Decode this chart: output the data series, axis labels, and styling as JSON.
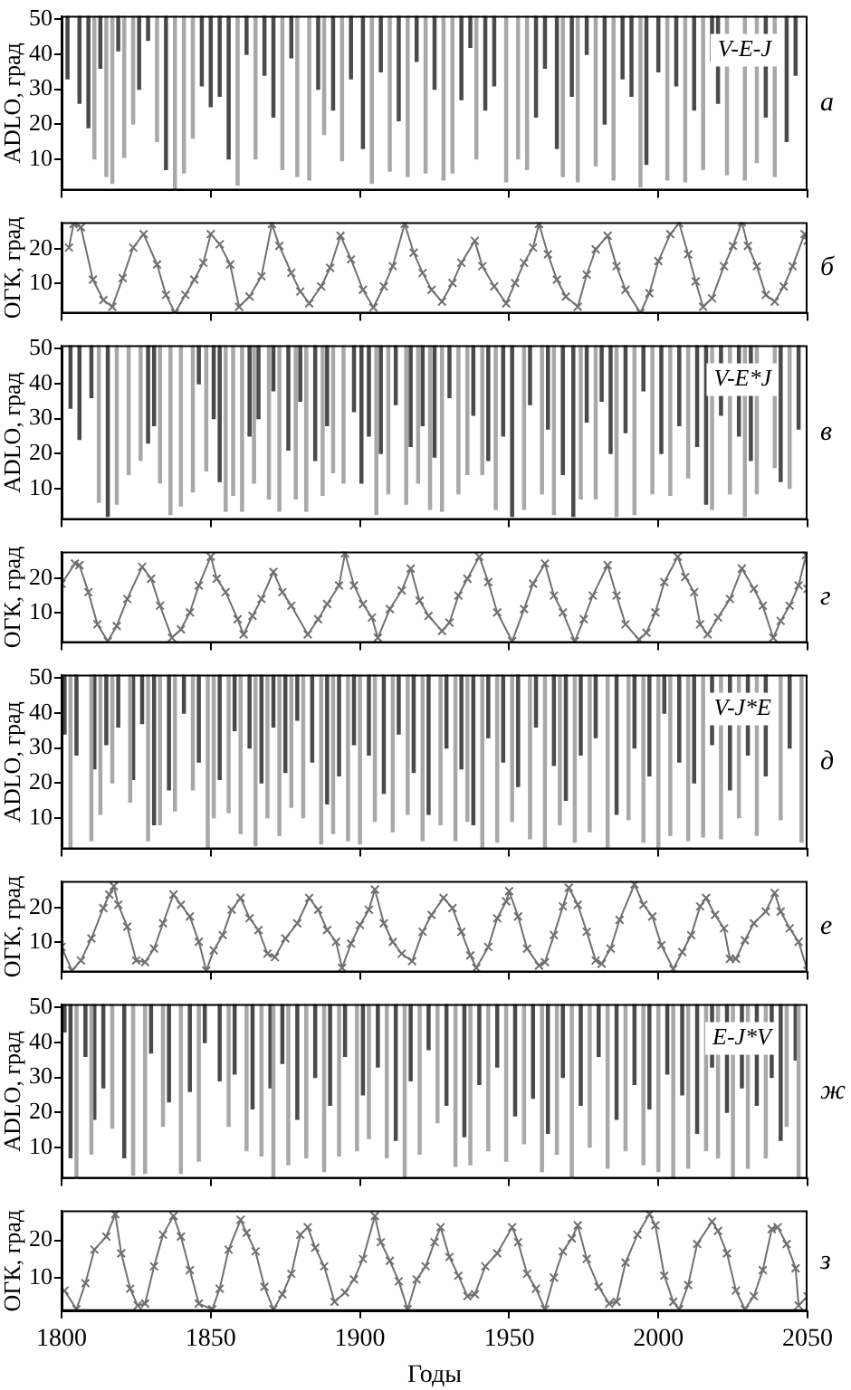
{
  "chart_data": [
    {
      "type": "bar",
      "title": "а",
      "ylabel": "ADLO, град",
      "annotations": [
        "V-E-J"
      ],
      "ylim": [
        1,
        51
      ],
      "yticks": [
        10,
        20,
        30,
        40,
        50
      ],
      "xlim": [
        1800,
        2050
      ],
      "xticks": [
        1800,
        1850,
        1900,
        1950,
        2000,
        2050
      ],
      "tick_labels": "y",
      "series": [
        {
          "color": "#a8a8a8",
          "x": [
            1811,
            1815,
            1817,
            1821,
            1824,
            1832,
            1838,
            1841,
            1844,
            1859,
            1865,
            1874,
            1879,
            1883,
            1888,
            1894,
            1904,
            1910,
            1916,
            1922,
            1928,
            1931,
            1939,
            1949,
            1953,
            1956,
            1968,
            1973,
            1979,
            1985,
            1994,
            2003,
            2009,
            2015,
            2023,
            2029,
            2033,
            2039
          ],
          "base": [
            10,
            5,
            3,
            10.5,
            20,
            15,
            1,
            6,
            16,
            2.5,
            10,
            7,
            5,
            4,
            17,
            9.5,
            3,
            6.5,
            5,
            6,
            4,
            6,
            10,
            3.5,
            10,
            7,
            5,
            3.5,
            8,
            4,
            2,
            4,
            3.5,
            7,
            5.5,
            4,
            9,
            5
          ],
          "values": [
            41,
            46,
            48,
            40.5,
            31,
            36,
            50,
            45,
            35,
            48.5,
            41,
            44,
            46,
            47,
            34,
            41.5,
            48,
            44.5,
            46,
            45,
            47,
            45,
            41,
            47.5,
            41,
            44,
            46,
            47.5,
            43,
            47,
            49,
            47,
            47.5,
            44,
            45.5,
            47,
            42,
            46
          ]
        },
        {
          "color": "#4a4a4a",
          "x": [
            1802,
            1806,
            1809,
            1813,
            1819,
            1826,
            1829,
            1835,
            1847,
            1850,
            1853,
            1856,
            1862,
            1868,
            1871,
            1877,
            1886,
            1891,
            1897,
            1901,
            1907,
            1913,
            1919,
            1925,
            1934,
            1937,
            1942,
            1945,
            1959,
            1962,
            1966,
            1971,
            1976,
            1982,
            1988,
            1991,
            1996,
            2000,
            2006,
            2012,
            2018,
            2020,
            2026,
            2036,
            2043,
            2046
          ],
          "base": [
            33,
            26,
            19,
            36,
            41,
            30,
            44,
            7,
            31,
            25,
            28,
            10,
            40,
            34,
            22,
            39,
            30,
            24,
            33,
            13,
            35,
            21,
            38,
            30,
            27,
            42,
            24,
            31,
            22,
            36,
            13,
            28,
            40,
            20,
            33,
            28,
            8.5,
            35,
            31,
            24,
            38,
            26,
            null,
            22,
            15,
            34
          ],
          "values": [
            18,
            25,
            32,
            15,
            10,
            21,
            7,
            44,
            20,
            26,
            23,
            41,
            11,
            17,
            29,
            12,
            21,
            27,
            18,
            38,
            16,
            30,
            13,
            21,
            24,
            9,
            27,
            20,
            29,
            15,
            38,
            23,
            11,
            31,
            18,
            23,
            42.5,
            16,
            20,
            27,
            13,
            25,
            null,
            29,
            36,
            17
          ]
        }
      ]
    },
    {
      "type": "line",
      "title": "б",
      "ylabel": "ОГК, град",
      "marker": "cross",
      "ylim": [
        1,
        28
      ],
      "yticks": [
        10,
        20
      ],
      "xlim": [
        1800,
        2050
      ],
      "xticks": [
        1800,
        1850,
        1900,
        1950,
        2000,
        2050
      ],
      "tick_labels": "y",
      "series": [
        {
          "color": "#707070",
          "x": [
            1802.5,
            1804,
            1806.5,
            1810.5,
            1814,
            1817,
            1820.5,
            1824,
            1827.5,
            1832,
            1835,
            1838,
            1841.5,
            1844.5,
            1847.5,
            1850,
            1853,
            1856.5,
            1859.5,
            1863,
            1867,
            1870.5,
            1873,
            1877,
            1880,
            1883,
            1887,
            1890,
            1893.5,
            1897,
            1901,
            1904.5,
            1908,
            1911,
            1915,
            1918,
            1921,
            1924,
            1927.5,
            1931,
            1934,
            1938.5,
            1941,
            1945,
            1949,
            1952,
            1955,
            1958,
            1960,
            1963,
            1966,
            1969,
            1973,
            1976,
            1979,
            1983,
            1986,
            1989,
            1994,
            1997,
            2000,
            2004,
            2007,
            2010,
            2012.5,
            2015,
            2018,
            2022,
            2025,
            2028,
            2030,
            2033,
            2036,
            2039,
            2042,
            2045,
            2049,
            2050
          ],
          "values": [
            20.5,
            27.5,
            26.5,
            11,
            5,
            3,
            11.5,
            20.5,
            24.5,
            15.5,
            6.5,
            1.2,
            6.5,
            11,
            16,
            24.5,
            21.5,
            15.5,
            3,
            6,
            12,
            27.5,
            21,
            13,
            7.5,
            4,
            9,
            14.5,
            24,
            17,
            8,
            2.8,
            9,
            15,
            27.5,
            19,
            13,
            8,
            4.5,
            10,
            16,
            22.5,
            15,
            9,
            4,
            10,
            16,
            20.5,
            27.5,
            18.5,
            11,
            6,
            3,
            12.5,
            20,
            24,
            15,
            8,
            1.2,
            7,
            16.5,
            24.5,
            27.7,
            18.5,
            10.5,
            3,
            5.5,
            15,
            21,
            28,
            21,
            15,
            6.5,
            4.5,
            9,
            15,
            24.5,
            22.5
          ]
        }
      ]
    },
    {
      "type": "bar",
      "title": "в",
      "ylabel": "ADLO, град",
      "annotations": [
        "V-E*J"
      ],
      "ylim": [
        1,
        51
      ],
      "yticks": [
        10,
        20,
        30,
        40,
        50
      ],
      "xlim": [
        1800,
        2050
      ],
      "xticks": [
        1800,
        1850,
        1900,
        1950,
        2000,
        2050
      ],
      "tick_labels": "y",
      "series": [
        {
          "color": "#a8a8a8",
          "x": [
            1812.5,
            1818.5,
            1822.5,
            1826.5,
            1833,
            1836.5,
            1840,
            1844,
            1848.5,
            1855,
            1857.5,
            1860.5,
            1864.5,
            1869.5,
            1873,
            1878.5,
            1882,
            1887.5,
            1891,
            1894.5,
            1905.5,
            1909.5,
            1915.5,
            1919.5,
            1923.5,
            1927.5,
            1933,
            1936,
            1941,
            1945.5,
            1955,
            1961,
            1965,
            1974,
            1979,
            1986,
            1992,
            1998,
            2004,
            2010,
            2018,
            2024,
            2029,
            2033,
            2039,
            2044
          ],
          "base": [
            6,
            5.5,
            14,
            18,
            11.5,
            2.5,
            5,
            9,
            15,
            3.5,
            8,
            3.5,
            11.5,
            7,
            3.5,
            7,
            3.5,
            8,
            14.5,
            11.5,
            2.5,
            8.5,
            5.5,
            11.5,
            4,
            3.5,
            8.5,
            14,
            14,
            4,
            4,
            8.5,
            2.5,
            7,
            7,
            2,
            2.5,
            8.5,
            8,
            13,
            4,
            8.5,
            2,
            8.5,
            16,
            10
          ],
          "values": [
            45,
            45.5,
            37,
            33,
            39.5,
            48.5,
            46,
            42,
            36,
            47.5,
            43,
            47.5,
            39.5,
            44,
            47.5,
            44,
            47.5,
            43,
            36.5,
            39.5,
            48.5,
            42.5,
            45.5,
            39.5,
            47,
            47.5,
            42.5,
            37,
            37,
            47,
            47,
            42.5,
            48.5,
            44,
            44,
            49,
            48.5,
            42.5,
            43,
            38,
            47,
            42.5,
            49,
            42.5,
            35,
            41
          ]
        },
        {
          "color": "#4a4a4a",
          "x": [
            1803,
            1806,
            1810,
            1815.5,
            1829,
            1831,
            1846,
            1851,
            1853,
            1863,
            1866,
            1871,
            1876,
            1880,
            1885,
            1889,
            1898,
            1900.5,
            1903,
            1907,
            1912,
            1917,
            1921,
            1925,
            1930,
            1938,
            1943,
            1948,
            1951,
            1957,
            1963,
            1968,
            1971.5,
            1976,
            1981,
            1984,
            1989,
            1995,
            2001,
            2007,
            2013,
            2016,
            2021,
            2027,
            2031,
            2036,
            2041,
            2047
          ],
          "base": [
            33,
            24,
            36,
            2,
            23,
            28,
            40,
            30,
            12,
            25,
            30,
            38,
            21,
            35,
            18,
            28,
            32,
            11.5,
            25,
            20,
            34,
            22,
            28,
            19,
            36,
            31,
            18,
            25,
            2,
            34,
            27,
            14,
            2,
            29,
            35,
            20,
            26,
            38,
            20,
            28,
            22,
            5.5,
            31,
            25,
            18,
            null,
            12,
            27
          ],
          "values": [
            18,
            27,
            15,
            49,
            28,
            23,
            11,
            21,
            39,
            26,
            21,
            13,
            30,
            16,
            33,
            23,
            19,
            39.5,
            26,
            31,
            17,
            29,
            23,
            32,
            15,
            20,
            33,
            26,
            49,
            17,
            24,
            37,
            49,
            22,
            16,
            31,
            25,
            13,
            31,
            23,
            29,
            45.5,
            20,
            26,
            33,
            null,
            39,
            24
          ]
        }
      ]
    },
    {
      "type": "line",
      "title": "г",
      "ylabel": "ОГК, град",
      "marker": "cross",
      "ylim": [
        1,
        28
      ],
      "yticks": [
        10,
        20
      ],
      "xlim": [
        1800,
        2050
      ],
      "xticks": [
        1800,
        1850,
        1900,
        1950,
        2000,
        2050
      ],
      "tick_labels": "y",
      "series": [
        {
          "color": "#707070",
          "x": [
            1800,
            1804.5,
            1806,
            1809,
            1812,
            1815.5,
            1818.5,
            1822,
            1827,
            1830,
            1833,
            1837,
            1840,
            1843,
            1846,
            1850,
            1852,
            1855,
            1859,
            1861,
            1864,
            1867,
            1871,
            1874,
            1877,
            1882.5,
            1886,
            1889,
            1893,
            1895,
            1898,
            1901,
            1904,
            1906,
            1910,
            1914,
            1917,
            1920,
            1923,
            1927.5,
            1930,
            1933,
            1936,
            1940,
            1943,
            1946,
            1951,
            1955,
            1958,
            1962,
            1965,
            1968,
            1972,
            1975,
            1978,
            1983,
            1986,
            1989,
            1993.5,
            1996,
            1999,
            2002,
            2006.5,
            2009,
            2012,
            2014,
            2016.5,
            2020,
            2024,
            2028,
            2032,
            2035,
            2038.5,
            2041,
            2044,
            2047,
            2049.5,
            2050
          ],
          "values": [
            18.5,
            24.5,
            24,
            16,
            6.5,
            1.5,
            6,
            14,
            23.5,
            20,
            12,
            2.5,
            5,
            10,
            18,
            26.5,
            20,
            16,
            8,
            3.5,
            9,
            14,
            22,
            16,
            12,
            3.5,
            8,
            12.5,
            18,
            27.5,
            18,
            12.5,
            8.5,
            2.5,
            11,
            16.5,
            23,
            13.5,
            9,
            4.5,
            7,
            15,
            20,
            26.5,
            19,
            10,
            1.5,
            11,
            18.5,
            24.5,
            15,
            10,
            1.5,
            8,
            15,
            24,
            15,
            6.5,
            2,
            4,
            10,
            19,
            26.5,
            20.5,
            16,
            6.5,
            3.5,
            8.5,
            14,
            23,
            17,
            12,
            2.5,
            7.5,
            12,
            18,
            27,
            17
          ]
        }
      ]
    },
    {
      "type": "bar",
      "title": "д",
      "ylabel": "ADLO, град",
      "annotations": [
        "V-J*E"
      ],
      "ylim": [
        1,
        51
      ],
      "yticks": [
        10,
        20,
        30,
        40,
        50
      ],
      "xlim": [
        1800,
        2050
      ],
      "xticks": [
        1800,
        1850,
        1900,
        1950,
        2000,
        2050
      ],
      "tick_labels": "y",
      "series": [
        {
          "color": "#a8a8a8",
          "x": [
            1803,
            1810,
            1813,
            1817,
            1823,
            1829,
            1833,
            1838,
            1844,
            1849,
            1851,
            1856,
            1860,
            1865,
            1869,
            1873,
            1877,
            1881,
            1887,
            1891,
            1896,
            1900,
            1905,
            1911,
            1916,
            1921,
            1927,
            1932,
            1936,
            1941,
            1946,
            1951,
            1957,
            1962,
            1967,
            1972,
            1977,
            1983,
            1990,
            1995,
            2000,
            2004,
            2010,
            2015,
            2021,
            2027,
            2033,
            2041,
            2048
          ],
          "base": [
            1.5,
            3.5,
            11,
            20,
            14.5,
            3.5,
            8,
            12,
            18,
            1.5,
            10,
            11.5,
            5.5,
            2,
            10,
            5,
            13,
            10,
            2.5,
            5.5,
            3.5,
            2.5,
            9,
            6,
            11,
            3.5,
            8,
            3.5,
            9,
            1.5,
            3,
            9,
            4,
            1.5,
            8,
            3,
            6,
            1.5,
            9.5,
            3,
            1.5,
            5,
            3.5,
            4.5,
            4,
            10,
            5,
            9.5,
            3
          ],
          "values": [
            49.5,
            47.5,
            40,
            31,
            36.5,
            47.5,
            43,
            39,
            33,
            49.5,
            41,
            39.5,
            45.5,
            49,
            41,
            46,
            38,
            41,
            48.5,
            45.5,
            47.5,
            48.5,
            42,
            45,
            40,
            47.5,
            43,
            47.5,
            42,
            49.5,
            48,
            42,
            47,
            49.5,
            43,
            48,
            45,
            49.5,
            41.5,
            48,
            49.5,
            46,
            47.5,
            46.5,
            47,
            41,
            46,
            41.5,
            48
          ]
        },
        {
          "color": "#4a4a4a",
          "x": [
            1801,
            1805,
            1811,
            1815,
            1819,
            1824,
            1827,
            1831,
            1836,
            1841,
            1846,
            1853,
            1858,
            1863,
            1867,
            1871,
            1875,
            1879,
            1884,
            1889,
            1893,
            1898,
            1903,
            1908,
            1913,
            1918,
            1923,
            1929,
            1934,
            1938,
            1943,
            1948,
            1953,
            1959,
            1965,
            1969,
            1974,
            1979,
            1986,
            1992,
            1997,
            2002,
            2007,
            2012,
            2018,
            2024,
            2030,
            2036,
            2044
          ],
          "base": [
            34,
            28,
            24,
            31,
            36,
            21,
            37,
            8,
            18,
            40,
            26,
            21,
            35,
            30,
            20,
            36,
            23,
            38,
            26,
            14,
            22,
            31,
            28,
            17,
            34,
            23,
            11,
            30,
            24,
            8,
            33,
            26,
            19,
            36,
            25,
            15,
            28,
            33,
            11,
            30,
            22,
            40,
            26,
            20,
            31,
            18,
            28,
            22,
            30
          ],
          "values": [
            17,
            23,
            27,
            20,
            15,
            30,
            14,
            43,
            33,
            11,
            25,
            30,
            16,
            21,
            31,
            15,
            28,
            13,
            25,
            37,
            29,
            20,
            23,
            34,
            17,
            28,
            40,
            21,
            27,
            43,
            18,
            25,
            32,
            15,
            26,
            36,
            23,
            18,
            40,
            21,
            29,
            11,
            25,
            31,
            20,
            33,
            23,
            29,
            21
          ]
        }
      ]
    },
    {
      "type": "line",
      "title": "е",
      "ylabel": "ОГК, град",
      "marker": "cross",
      "ylim": [
        1,
        28
      ],
      "yticks": [
        10,
        20
      ],
      "xlim": [
        1800,
        2050
      ],
      "xticks": [
        1800,
        1850,
        1900,
        1950,
        2000,
        2050
      ],
      "tick_labels": "y",
      "series": [
        {
          "color": "#707070",
          "x": [
            1800,
            1803.5,
            1806.5,
            1810,
            1814,
            1816,
            1817.5,
            1819,
            1822,
            1825,
            1828,
            1831,
            1834,
            1837.5,
            1840,
            1843,
            1846,
            1848.5,
            1851,
            1854,
            1857,
            1860,
            1863,
            1866,
            1869,
            1871.5,
            1875,
            1879,
            1883,
            1886,
            1889,
            1892,
            1894,
            1897,
            1900,
            1903,
            1905,
            1908,
            1911,
            1914,
            1917.5,
            1921,
            1924,
            1928,
            1931,
            1934,
            1937,
            1939,
            1943,
            1946,
            1949,
            1950,
            1953,
            1956,
            1960,
            1962,
            1965,
            1968,
            1970,
            1973,
            1976,
            1979,
            1981,
            1984,
            1987,
            1992,
            1995,
            1998,
            2001,
            2005,
            2008,
            2011,
            2014,
            2016,
            2019,
            2022,
            2024,
            2026,
            2029,
            2032,
            2036,
            2039,
            2041,
            2044,
            2047,
            2050
          ],
          "values": [
            8.5,
            1.5,
            4.5,
            11,
            20,
            24,
            26.5,
            21,
            14.5,
            4.5,
            4,
            8,
            15.5,
            24,
            21,
            17.5,
            10,
            1.5,
            7.5,
            12,
            19.5,
            23,
            17,
            13.5,
            6.5,
            5.5,
            11,
            15.5,
            23,
            19.5,
            13.5,
            10,
            2.3,
            9.5,
            15,
            19.5,
            25.5,
            15.5,
            10,
            6.5,
            4.3,
            13,
            18,
            23,
            20,
            13,
            6,
            2.3,
            8.5,
            17,
            22,
            25,
            17.5,
            8,
            3,
            4,
            12,
            20.5,
            26,
            21,
            13,
            4.5,
            3.5,
            8,
            16.5,
            27,
            21,
            17.5,
            9,
            2,
            7,
            12,
            20.5,
            23,
            18,
            14,
            5,
            5,
            10.5,
            15.5,
            19,
            24.5,
            19,
            14,
            10,
            1.5
          ]
        }
      ]
    },
    {
      "type": "bar",
      "title": "ж",
      "ylabel": "ADLO, град",
      "annotations": [
        "E-J*V"
      ],
      "ylim": [
        1,
        51
      ],
      "yticks": [
        10,
        20,
        30,
        40,
        50
      ],
      "xlim": [
        1800,
        2050
      ],
      "xticks": [
        1800,
        1850,
        1900,
        1950,
        2000,
        2050
      ],
      "tick_labels": "y",
      "series": [
        {
          "color": "#a8a8a8",
          "x": [
            1805,
            1810,
            1817,
            1824,
            1828,
            1834,
            1840,
            1846,
            1856,
            1862,
            1867,
            1871,
            1876,
            1882,
            1888,
            1893,
            1899,
            1903,
            1909,
            1915,
            1920,
            1926,
            1932,
            1937,
            1943,
            1949,
            1955,
            1961,
            1966,
            1971,
            1977,
            1983,
            1989,
            1995,
            2000,
            2005,
            2010,
            2016,
            2020,
            2025,
            2030,
            2036,
            2043,
            2047
          ],
          "base": [
            1,
            8,
            15.5,
            2,
            2.5,
            16,
            2.5,
            6,
            16,
            9,
            7.5,
            1.5,
            5,
            7,
            3,
            7.5,
            9,
            12.5,
            7,
            1.5,
            8,
            17,
            4.5,
            5,
            9,
            6,
            11,
            3,
            8,
            1,
            10,
            4,
            9,
            5,
            3,
            1.5,
            4,
            9,
            7,
            1.5,
            4,
            7,
            16,
            1.5
          ],
          "values": [
            50,
            43,
            35.5,
            49,
            48.5,
            35,
            48.5,
            45,
            35,
            42,
            43.5,
            49.5,
            46,
            44,
            48,
            43.5,
            42,
            38.5,
            44,
            49.5,
            43,
            34,
            46.5,
            46,
            42,
            45,
            40,
            48,
            43,
            50,
            41,
            47,
            42,
            46,
            48,
            49.5,
            47,
            42,
            44,
            49.5,
            47,
            44,
            35,
            49.5
          ]
        },
        {
          "color": "#4a4a4a",
          "x": [
            1801,
            1803,
            1808,
            1811,
            1814,
            1821,
            1830,
            1836,
            1843,
            1848,
            1853,
            1858,
            1864,
            1870,
            1874,
            1879,
            1885,
            1890,
            1895,
            1901,
            1906,
            1912,
            1917,
            1923,
            1929,
            1935,
            1940,
            1946,
            1952,
            1958,
            1963,
            1968,
            1974,
            1980,
            1986,
            1992,
            1997,
            2003,
            2008,
            2013,
            2018,
            2023,
            2028,
            2033,
            2038,
            2041,
            2046
          ],
          "base": [
            43,
            7,
            36,
            18,
            27,
            7,
            37,
            23,
            26,
            40,
            29,
            31,
            21,
            27,
            34,
            18,
            30,
            22,
            36,
            25,
            33,
            12,
            29,
            38,
            22,
            13,
            28,
            33,
            19,
            24,
            14,
            30,
            22,
            36,
            18,
            28,
            21,
            31,
            25,
            14,
            33,
            20,
            27,
            22,
            30,
            12,
            35
          ],
          "values": [
            8,
            44,
            15,
            33,
            24,
            44,
            14,
            28,
            25,
            11,
            22,
            20,
            30,
            24,
            17,
            33,
            21,
            29,
            15,
            26,
            18,
            39,
            22,
            13,
            29,
            38,
            23,
            18,
            32,
            27,
            37,
            21,
            29,
            15,
            33,
            23,
            30,
            20,
            26,
            37,
            18,
            31,
            24,
            29,
            21,
            39,
            16
          ]
        }
      ]
    },
    {
      "type": "line",
      "title": "з",
      "ylabel": "ОГК, град",
      "xlabel": "Годы",
      "marker": "cross",
      "ylim": [
        1,
        28
      ],
      "yticks": [
        10,
        20
      ],
      "xlim": [
        1800,
        2050
      ],
      "xticks": [
        1800,
        1850,
        1900,
        1950,
        2000,
        2050
      ],
      "series": [
        {
          "color": "#707070",
          "x": [
            1801,
            1805,
            1808,
            1811,
            1815,
            1818,
            1820,
            1823,
            1825.5,
            1828,
            1831,
            1834,
            1837.5,
            1840,
            1843,
            1846,
            1850.5,
            1853,
            1856,
            1860,
            1862,
            1865,
            1868,
            1871,
            1874,
            1877,
            1880,
            1882.5,
            1885,
            1888,
            1891.5,
            1895,
            1898,
            1901,
            1905,
            1907,
            1910,
            1913,
            1916,
            1919,
            1922,
            1925,
            1927,
            1930,
            1933,
            1936,
            1938.5,
            1942,
            1946,
            1951,
            1953,
            1956,
            1959,
            1962,
            1965,
            1968,
            1971,
            1973,
            1976,
            1980,
            1983.5,
            1986,
            1989,
            1993,
            1997,
            1999,
            2002,
            2005,
            2007,
            2010,
            2013,
            2018,
            2020,
            2023,
            2026,
            2029,
            2032,
            2035,
            2038,
            2040,
            2043,
            2046,
            2047,
            2050
          ],
          "values": [
            6.5,
            1.5,
            8.5,
            17.5,
            21,
            27,
            16.5,
            7,
            2.5,
            3,
            13,
            21.5,
            26.5,
            21,
            12,
            3,
            1.5,
            7,
            17.5,
            25.5,
            22,
            17,
            7.5,
            1.5,
            5.5,
            11,
            21.5,
            23.5,
            18,
            13,
            3.5,
            6,
            9.5,
            15,
            26.5,
            19.5,
            14.5,
            9,
            1.5,
            9.5,
            13,
            19.5,
            23.5,
            15.5,
            10.5,
            5,
            5.5,
            13,
            16.5,
            23.5,
            19.5,
            11,
            7,
            1.5,
            10,
            17,
            20.5,
            24,
            15,
            7.5,
            3,
            3.5,
            14,
            21.5,
            27,
            24,
            10.5,
            3.5,
            1.5,
            8,
            19,
            25,
            22.5,
            16.5,
            6.5,
            1.5,
            5,
            12,
            23,
            23.5,
            19,
            12.5,
            2.5,
            5
          ]
        }
      ]
    }
  ]
}
